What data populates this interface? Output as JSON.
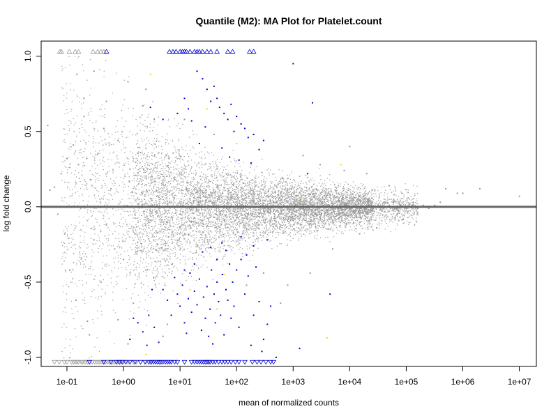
{
  "chart_data": {
    "type": "scatter",
    "title": "Quantile (M2): MA Plot for Platelet.count",
    "xlabel": "mean of normalized counts",
    "ylabel": "log fold change",
    "xscale": "log10",
    "xlim": [
      0.035,
      20000000
    ],
    "ylim": [
      -1.06,
      1.1
    ],
    "x_tick_labels": [
      "1e-01",
      "1e+00",
      "1e+01",
      "1e+02",
      "1e+03",
      "1e+04",
      "1e+05",
      "1e+06",
      "1e+07"
    ],
    "x_tick_values": [
      0.1,
      1,
      10,
      100,
      1000,
      10000,
      100000,
      1000000,
      10000000
    ],
    "y_tick_labels": [
      "1.0",
      "0.5",
      "0.0",
      "-0.5",
      "-1.0"
    ],
    "y_tick_values": [
      1.0,
      0.5,
      0.0,
      -0.5,
      -1.0
    ],
    "reference_line": {
      "y": 0,
      "color": "#666666"
    },
    "colors": {
      "non_significant": "#999999",
      "significant": "#0000cc",
      "highlight": "#ffd700"
    },
    "grid": false,
    "legend": "none",
    "series": [
      {
        "points": [
          [
            0.0457,
            0.54
          ],
          [
            0.0501,
            0.11
          ],
          [
            0.0603,
            0.13
          ],
          [
            0.069,
            -0.05
          ],
          [
            0.0794,
            0.22
          ],
          [
            0.0912,
            -0.18
          ],
          [
            0.1,
            0.32
          ],
          [
            0.112,
            -0.42
          ],
          [
            0.13,
            0.41
          ],
          [
            0.145,
            -0.62
          ],
          [
            0.16,
            0.28
          ],
          [
            0.18,
            -0.34
          ],
          [
            0.2,
            0.6
          ],
          [
            0.23,
            -0.76
          ],
          [
            0.26,
            0.18
          ],
          [
            0.3,
            -0.22
          ],
          [
            0.35,
            0.35
          ],
          [
            0.4,
            -0.5
          ],
          [
            0.45,
            0.52
          ],
          [
            0.5,
            -0.12
          ],
          [
            0.6,
            0.12
          ],
          [
            0.7,
            -0.28
          ],
          [
            0.8,
            0.44
          ],
          [
            1.0,
            -0.35
          ],
          [
            1.3,
            0.25
          ],
          [
            1.6,
            -0.18
          ],
          [
            2.0,
            0.36
          ],
          [
            2.5,
            -0.42
          ],
          [
            3.2,
            0.2
          ],
          [
            4.0,
            -0.25
          ],
          [
            5.0,
            0.15
          ],
          [
            6.3,
            -0.2
          ],
          [
            8.0,
            0.18
          ],
          [
            10,
            -0.14
          ],
          [
            13,
            0.12
          ],
          [
            16,
            -0.1
          ],
          [
            20,
            0.1
          ],
          [
            25,
            -0.09
          ],
          [
            32,
            0.08
          ],
          [
            40,
            -0.07
          ],
          [
            50,
            0.07
          ],
          [
            63,
            -0.06
          ],
          [
            80,
            0.06
          ],
          [
            100,
            -0.05
          ],
          [
            130,
            0.05
          ],
          [
            160,
            -0.05
          ],
          [
            200,
            0.04
          ],
          [
            250,
            -0.04
          ],
          [
            320,
            0.04
          ],
          [
            400,
            -0.03
          ],
          [
            500,
            0.03
          ],
          [
            630,
            -0.03
          ],
          [
            800,
            0.03
          ],
          [
            1000,
            -0.02
          ],
          [
            1300,
            0.02
          ],
          [
            1600,
            -0.02
          ],
          [
            2000,
            0.02
          ],
          [
            2500,
            -0.02
          ],
          [
            3200,
            0.02
          ],
          [
            4000,
            -0.02
          ],
          [
            5000,
            0.02
          ],
          [
            6300,
            -0.01
          ],
          [
            8000,
            0.01
          ],
          [
            10000,
            -0.01
          ],
          [
            13000,
            0.01
          ],
          [
            16000,
            -0.01
          ],
          [
            20000,
            0.01
          ],
          [
            25000,
            -0.01
          ],
          [
            32000,
            0.01
          ],
          [
            40000,
            -0.01
          ],
          [
            50000,
            0.01
          ],
          [
            63000,
            -0.01
          ],
          [
            80000,
            0.01
          ],
          [
            100000,
            -0.01
          ],
          [
            130000,
            0.01
          ],
          [
            160000,
            -0.01
          ],
          [
            200000,
            0.01
          ],
          [
            250000,
            -0.01
          ],
          [
            320000,
            0.01
          ],
          [
            400000,
            0.03
          ],
          [
            500000,
            0.12
          ],
          [
            800000,
            0.09
          ],
          [
            1000000,
            0.09
          ],
          [
            2000000,
            0.12
          ],
          [
            10000000,
            0.07
          ],
          [
            0.3,
            0.9
          ],
          [
            1.2,
            0.83
          ],
          [
            0.2,
            0.72
          ],
          [
            2.2,
            0.67
          ],
          [
            1.5,
            -0.64
          ],
          [
            1.2,
            -0.91
          ],
          [
            3.5,
            0.58
          ],
          [
            0.8,
            -0.75
          ],
          [
            5.0,
            -0.86
          ],
          [
            12,
            0.58
          ],
          [
            0.15,
            0.88
          ],
          [
            0.25,
            -0.85
          ],
          [
            0.5,
            0.7
          ],
          [
            6,
            -0.78
          ],
          [
            2.5,
            0.78
          ],
          [
            40,
            0.48
          ],
          [
            150,
            -0.52
          ],
          [
            300,
            -0.44
          ],
          [
            600,
            -0.64
          ],
          [
            800,
            -0.52
          ],
          [
            1500,
            0.34
          ],
          [
            2000,
            -0.44
          ],
          [
            3000,
            0.28
          ],
          [
            5000,
            -0.28
          ],
          [
            8000,
            0.24
          ],
          [
            10000,
            0.4
          ],
          [
            15000,
            -0.18
          ],
          [
            20000,
            0.22
          ],
          [
            30000,
            -0.14
          ],
          [
            50000,
            0.14
          ]
        ]
      },
      {
        "points": [
          [
            3.0,
            0.66
          ],
          [
            5.0,
            0.58
          ],
          [
            12,
            0.72
          ],
          [
            14,
            0.65
          ],
          [
            20,
            0.9
          ],
          [
            25,
            0.85
          ],
          [
            30,
            0.78
          ],
          [
            40,
            0.8
          ],
          [
            45,
            0.72
          ],
          [
            50,
            0.66
          ],
          [
            60,
            0.62
          ],
          [
            70,
            0.58
          ],
          [
            80,
            0.68
          ],
          [
            90,
            0.5
          ],
          [
            100,
            0.6
          ],
          [
            120,
            0.55
          ],
          [
            140,
            0.52
          ],
          [
            160,
            0.46
          ],
          [
            200,
            0.48
          ],
          [
            250,
            0.38
          ],
          [
            300,
            0.44
          ],
          [
            35,
            0.7
          ],
          [
            28,
            0.53
          ],
          [
            16,
            0.57
          ],
          [
            9,
            0.62
          ],
          [
            22,
            0.42
          ],
          [
            55,
            0.39
          ],
          [
            75,
            0.33
          ],
          [
            110,
            0.31
          ],
          [
            180,
            0.29
          ],
          [
            1000,
            0.95
          ],
          [
            2200,
            0.69
          ],
          [
            1800,
            0.22
          ],
          [
            3.5,
            -0.8
          ],
          [
            4.2,
            -0.9
          ],
          [
            5.0,
            -0.55
          ],
          [
            6.0,
            -0.62
          ],
          [
            7.0,
            -0.72
          ],
          [
            8.0,
            -0.47
          ],
          [
            9.0,
            -0.58
          ],
          [
            10,
            -0.66
          ],
          [
            11,
            -0.52
          ],
          [
            12,
            -0.77
          ],
          [
            13,
            -0.84
          ],
          [
            14,
            -0.61
          ],
          [
            15,
            -0.44
          ],
          [
            16,
            -0.7
          ],
          [
            18,
            -0.56
          ],
          [
            20,
            -0.65
          ],
          [
            22,
            -0.48
          ],
          [
            24,
            -0.82
          ],
          [
            26,
            -0.6
          ],
          [
            28,
            -0.74
          ],
          [
            30,
            -0.53
          ],
          [
            32,
            -0.86
          ],
          [
            34,
            -0.68
          ],
          [
            36,
            -0.42
          ],
          [
            38,
            -0.91
          ],
          [
            40,
            -0.58
          ],
          [
            42,
            -0.77
          ],
          [
            45,
            -0.5
          ],
          [
            48,
            -0.63
          ],
          [
            52,
            -0.72
          ],
          [
            56,
            -0.45
          ],
          [
            60,
            -0.85
          ],
          [
            65,
            -0.55
          ],
          [
            70,
            -0.62
          ],
          [
            75,
            -0.38
          ],
          [
            80,
            -0.74
          ],
          [
            85,
            -0.5
          ],
          [
            90,
            -0.66
          ],
          [
            100,
            -0.42
          ],
          [
            110,
            -0.8
          ],
          [
            120,
            -0.35
          ],
          [
            140,
            -0.58
          ],
          [
            160,
            -0.46
          ],
          [
            180,
            -0.92
          ],
          [
            200,
            -0.72
          ],
          [
            220,
            -0.4
          ],
          [
            250,
            -0.63
          ],
          [
            280,
            -0.96
          ],
          [
            300,
            -0.88
          ],
          [
            350,
            -0.78
          ],
          [
            400,
            -0.66
          ],
          [
            500,
            -1.0
          ],
          [
            1300,
            -0.94
          ],
          [
            4500,
            -0.58
          ],
          [
            2.8,
            -0.72
          ],
          [
            3.2,
            -0.55
          ],
          [
            25,
            -0.3
          ],
          [
            35,
            -0.27
          ],
          [
            45,
            -0.35
          ],
          [
            55,
            -0.24
          ],
          [
            65,
            -0.29
          ],
          [
            150,
            -0.32
          ],
          [
            350,
            -0.22
          ],
          [
            120,
            -0.2
          ],
          [
            200,
            -0.26
          ],
          [
            18,
            -0.38
          ],
          [
            12,
            -0.42
          ],
          [
            2.2,
            -0.83
          ],
          [
            1.8,
            -0.77
          ],
          [
            1.5,
            -0.74
          ],
          [
            1.3,
            -0.88
          ],
          [
            2.6,
            -0.92
          ]
        ]
      },
      {
        "points": [
          [
            3.0,
            0.88
          ],
          [
            30,
            0.65
          ],
          [
            100,
            0.42
          ],
          [
            60,
            -0.45
          ],
          [
            45,
            -0.68
          ],
          [
            4000,
            -0.87
          ],
          [
            7000,
            0.28
          ],
          [
            1500,
            0.06
          ],
          [
            15,
            -0.55
          ],
          [
            2.5,
            -0.98
          ]
        ]
      }
    ],
    "clipped_top": {
      "y": 1.03,
      "non_significant_x": [
        0.075,
        0.08,
        0.11,
        0.14,
        0.16,
        0.29,
        0.35,
        0.4,
        0.45
      ],
      "significant_x": [
        0.5,
        6.5,
        7.5,
        8.5,
        10,
        11,
        12,
        13,
        15,
        18,
        20,
        22,
        25,
        30,
        35,
        45,
        70,
        85,
        170,
        200
      ]
    },
    "clipped_bottom": {
      "y": -1.03,
      "non_significant_x": [
        0.06,
        0.073,
        0.09,
        0.1,
        0.12,
        0.13,
        0.14,
        0.15,
        0.16,
        0.18,
        0.19,
        0.21,
        0.23,
        0.25,
        0.28,
        0.31,
        0.34,
        0.37,
        0.4,
        0.44,
        0.48,
        0.52,
        0.56,
        0.6,
        0.65,
        0.7,
        0.75,
        0.8,
        0.85,
        0.9,
        0.95,
        1.0,
        1.1,
        1.2,
        1.3,
        1.5,
        1.7,
        2.0,
        2.5,
        3.0
      ],
      "significant_x": [
        0.25,
        0.45,
        0.6,
        0.75,
        0.85,
        0.95,
        1.1,
        1.3,
        1.6,
        2.0,
        2.4,
        2.8,
        3.1,
        3.4,
        3.7,
        4.0,
        4.3,
        4.6,
        5.0,
        5.5,
        6.0,
        6.5,
        7.0,
        8.0,
        9.0,
        12,
        16,
        18,
        20,
        22,
        24,
        26,
        28,
        30,
        32,
        34,
        38,
        42,
        48,
        55,
        62,
        70,
        80,
        95,
        110,
        140,
        190,
        230,
        270,
        330,
        400,
        450
      ]
    }
  }
}
